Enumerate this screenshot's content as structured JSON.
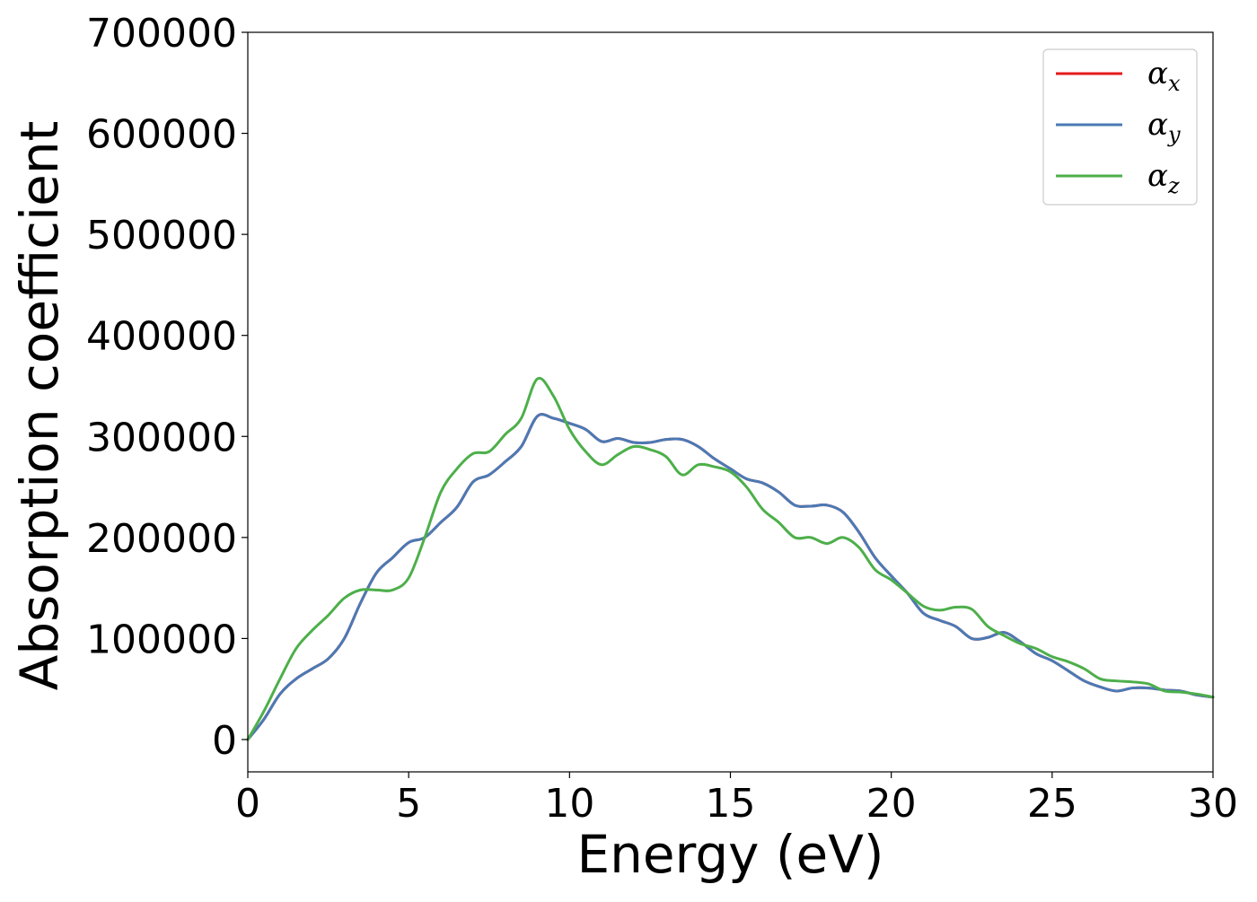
{
  "chart_data": {
    "type": "line",
    "xlabel": "Energy (eV)",
    "ylabel": "Absorption coefficient",
    "xlim": [
      0,
      30
    ],
    "ylim": [
      -32000,
      700000
    ],
    "x_ticks": [
      0,
      5,
      10,
      15,
      20,
      25,
      30
    ],
    "x_tick_labels": [
      "0",
      "5",
      "10",
      "15",
      "20",
      "25",
      "30"
    ],
    "y_ticks": [
      0,
      100000,
      200000,
      300000,
      400000,
      500000,
      600000,
      700000
    ],
    "y_tick_labels": [
      "0",
      "100000",
      "200000",
      "300000",
      "400000",
      "500000",
      "600000",
      "700000"
    ],
    "grid": false,
    "legend_position": "top-right",
    "series": [
      {
        "name": "α",
        "subscript": "x",
        "color": "#e41a1c",
        "points": [
          [
            0,
            0
          ],
          [
            0.5,
            20000
          ],
          [
            1,
            45000
          ],
          [
            1.5,
            60000
          ],
          [
            2,
            70000
          ],
          [
            2.5,
            80000
          ],
          [
            3,
            100000
          ],
          [
            3.5,
            135000
          ],
          [
            4,
            165000
          ],
          [
            4.5,
            180000
          ],
          [
            5,
            195000
          ],
          [
            5.5,
            200000
          ],
          [
            6,
            215000
          ],
          [
            6.5,
            230000
          ],
          [
            7,
            255000
          ],
          [
            7.5,
            262000
          ],
          [
            8,
            275000
          ],
          [
            8.5,
            290000
          ],
          [
            9,
            320000
          ],
          [
            9.5,
            318000
          ],
          [
            10,
            313000
          ],
          [
            10.5,
            307000
          ],
          [
            11,
            295000
          ],
          [
            11.5,
            298000
          ],
          [
            12,
            294000
          ],
          [
            12.5,
            294000
          ],
          [
            13,
            297000
          ],
          [
            13.5,
            297000
          ],
          [
            14,
            290000
          ],
          [
            14.5,
            278000
          ],
          [
            15,
            268000
          ],
          [
            15.5,
            258000
          ],
          [
            16,
            254000
          ],
          [
            16.5,
            245000
          ],
          [
            17,
            232000
          ],
          [
            17.5,
            231000
          ],
          [
            18,
            232000
          ],
          [
            18.5,
            225000
          ],
          [
            19,
            205000
          ],
          [
            19.5,
            180000
          ],
          [
            20,
            162000
          ],
          [
            20.5,
            145000
          ],
          [
            21,
            125000
          ],
          [
            21.5,
            118000
          ],
          [
            22,
            112000
          ],
          [
            22.5,
            100000
          ],
          [
            23,
            101000
          ],
          [
            23.5,
            106000
          ],
          [
            24,
            97000
          ],
          [
            24.5,
            85000
          ],
          [
            25,
            78000
          ],
          [
            25.5,
            68000
          ],
          [
            26,
            58000
          ],
          [
            26.5,
            52000
          ],
          [
            27,
            48000
          ],
          [
            27.5,
            51000
          ],
          [
            28,
            51000
          ],
          [
            28.5,
            49000
          ],
          [
            29,
            48000
          ],
          [
            29.5,
            44000
          ],
          [
            30,
            42000
          ]
        ]
      },
      {
        "name": "α",
        "subscript": "y",
        "color": "#4a7ab5",
        "points": [
          [
            0,
            0
          ],
          [
            0.5,
            20000
          ],
          [
            1,
            45000
          ],
          [
            1.5,
            60000
          ],
          [
            2,
            70000
          ],
          [
            2.5,
            80000
          ],
          [
            3,
            100000
          ],
          [
            3.5,
            135000
          ],
          [
            4,
            165000
          ],
          [
            4.5,
            180000
          ],
          [
            5,
            195000
          ],
          [
            5.5,
            200000
          ],
          [
            6,
            215000
          ],
          [
            6.5,
            230000
          ],
          [
            7,
            255000
          ],
          [
            7.5,
            262000
          ],
          [
            8,
            275000
          ],
          [
            8.5,
            290000
          ],
          [
            9,
            320000
          ],
          [
            9.5,
            318000
          ],
          [
            10,
            313000
          ],
          [
            10.5,
            307000
          ],
          [
            11,
            295000
          ],
          [
            11.5,
            298000
          ],
          [
            12,
            294000
          ],
          [
            12.5,
            294000
          ],
          [
            13,
            297000
          ],
          [
            13.5,
            297000
          ],
          [
            14,
            290000
          ],
          [
            14.5,
            278000
          ],
          [
            15,
            268000
          ],
          [
            15.5,
            258000
          ],
          [
            16,
            254000
          ],
          [
            16.5,
            245000
          ],
          [
            17,
            232000
          ],
          [
            17.5,
            231000
          ],
          [
            18,
            232000
          ],
          [
            18.5,
            225000
          ],
          [
            19,
            205000
          ],
          [
            19.5,
            180000
          ],
          [
            20,
            162000
          ],
          [
            20.5,
            145000
          ],
          [
            21,
            125000
          ],
          [
            21.5,
            118000
          ],
          [
            22,
            112000
          ],
          [
            22.5,
            100000
          ],
          [
            23,
            101000
          ],
          [
            23.5,
            106000
          ],
          [
            24,
            97000
          ],
          [
            24.5,
            85000
          ],
          [
            25,
            78000
          ],
          [
            25.5,
            68000
          ],
          [
            26,
            58000
          ],
          [
            26.5,
            52000
          ],
          [
            27,
            48000
          ],
          [
            27.5,
            51000
          ],
          [
            28,
            51000
          ],
          [
            28.5,
            49000
          ],
          [
            29,
            48000
          ],
          [
            29.5,
            44000
          ],
          [
            30,
            42000
          ]
        ]
      },
      {
        "name": "α",
        "subscript": "z",
        "color": "#4daf4a",
        "points": [
          [
            0,
            0
          ],
          [
            0.5,
            28000
          ],
          [
            1,
            60000
          ],
          [
            1.5,
            90000
          ],
          [
            2,
            108000
          ],
          [
            2.5,
            123000
          ],
          [
            3,
            140000
          ],
          [
            3.5,
            148000
          ],
          [
            4,
            148000
          ],
          [
            4.5,
            148000
          ],
          [
            5,
            160000
          ],
          [
            5.5,
            200000
          ],
          [
            6,
            245000
          ],
          [
            6.5,
            268000
          ],
          [
            7,
            283000
          ],
          [
            7.5,
            285000
          ],
          [
            8,
            302000
          ],
          [
            8.5,
            318000
          ],
          [
            9,
            357000
          ],
          [
            9.5,
            340000
          ],
          [
            10,
            307000
          ],
          [
            10.5,
            285000
          ],
          [
            11,
            272000
          ],
          [
            11.5,
            282000
          ],
          [
            12,
            290000
          ],
          [
            12.5,
            287000
          ],
          [
            13,
            280000
          ],
          [
            13.5,
            262000
          ],
          [
            14,
            272000
          ],
          [
            14.5,
            270000
          ],
          [
            15,
            265000
          ],
          [
            15.5,
            250000
          ],
          [
            16,
            228000
          ],
          [
            16.5,
            215000
          ],
          [
            17,
            200000
          ],
          [
            17.5,
            200000
          ],
          [
            18,
            194000
          ],
          [
            18.5,
            200000
          ],
          [
            19,
            190000
          ],
          [
            19.5,
            168000
          ],
          [
            20,
            158000
          ],
          [
            20.5,
            145000
          ],
          [
            21,
            132000
          ],
          [
            21.5,
            128000
          ],
          [
            22,
            131000
          ],
          [
            22.5,
            129000
          ],
          [
            23,
            112000
          ],
          [
            23.5,
            103000
          ],
          [
            24,
            95000
          ],
          [
            24.5,
            90000
          ],
          [
            25,
            82000
          ],
          [
            25.5,
            77000
          ],
          [
            26,
            70000
          ],
          [
            26.5,
            60000
          ],
          [
            27,
            58000
          ],
          [
            27.5,
            57000
          ],
          [
            28,
            55000
          ],
          [
            28.5,
            48000
          ],
          [
            29,
            47000
          ],
          [
            29.5,
            45000
          ],
          [
            30,
            42000
          ]
        ]
      }
    ]
  }
}
